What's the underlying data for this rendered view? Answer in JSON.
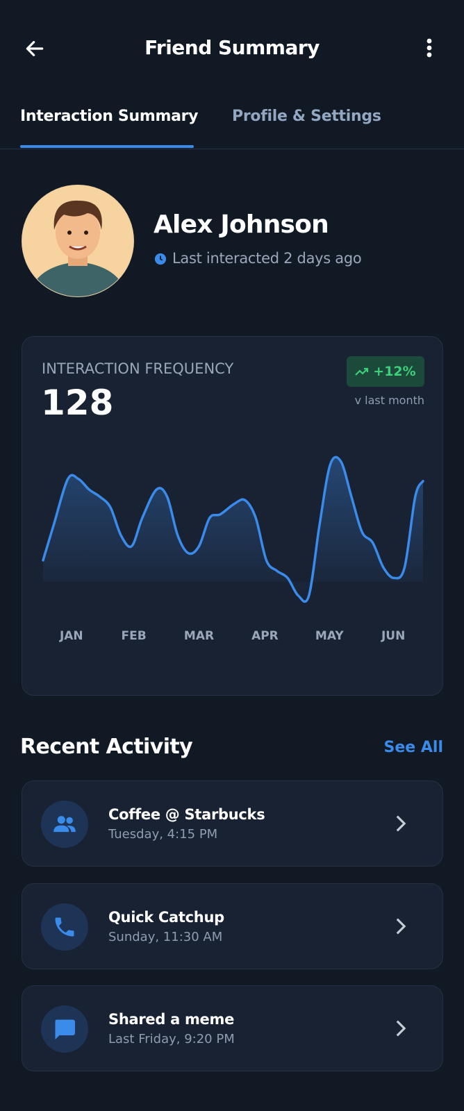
{
  "header": {
    "title": "Friend Summary"
  },
  "tabs": [
    "Interaction Summary",
    "Profile & Settings"
  ],
  "profile": {
    "name": "Alex Johnson",
    "last_interacted": "Last interacted 2 days ago"
  },
  "chart_data": {
    "type": "line",
    "title": "INTERACTION FREQUENCY",
    "total": 128,
    "change": "+12%",
    "change_note": "v last month",
    "x": [
      0,
      15,
      35,
      50,
      65,
      80,
      95,
      110,
      125,
      140,
      160,
      175,
      190,
      205,
      220,
      235,
      250,
      270,
      285,
      300,
      315,
      330,
      345,
      360,
      375,
      390,
      405,
      420,
      435,
      450,
      465,
      480,
      495,
      510,
      525,
      536
    ],
    "series": [
      {
        "color": "#3b8beb",
        "values": [
          30,
          55,
          87.5,
          87.5,
          80,
          75,
          67.5,
          47.5,
          40,
          60,
          80,
          75,
          47.5,
          35,
          40,
          60,
          62.5,
          70,
          72.5,
          60,
          30,
          22.5,
          17.5,
          5,
          5,
          55,
          97.5,
          100,
          75,
          50,
          42.5,
          25,
          17.5,
          25,
          75,
          86
        ]
      }
    ],
    "xlim": [
      0,
      536
    ],
    "ylim": [
      0,
      110
    ],
    "xticks": [
      {
        "value": 40,
        "label": "JAN"
      },
      {
        "value": 128,
        "label": "FEB"
      },
      {
        "value": 220,
        "label": "MAR"
      },
      {
        "value": 313,
        "label": "APR"
      },
      {
        "value": 404,
        "label": "MAY"
      },
      {
        "value": 494,
        "label": "JUN"
      }
    ]
  },
  "recent_activity": {
    "title": "Recent Activity",
    "action": "See All",
    "items": [
      {
        "title": "Coffee @ Starbucks",
        "time": "Tuesday, 4:15 PM"
      },
      {
        "title": "Quick Catchup",
        "time": "Sunday, 11:30 AM"
      },
      {
        "title": "Shared a meme",
        "time": "Last Friday, 9:20 PM"
      }
    ]
  }
}
